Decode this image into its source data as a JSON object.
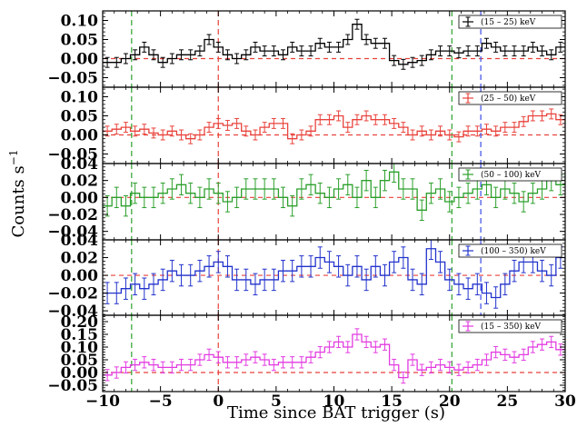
{
  "chart_data": {
    "type": "step",
    "xlabel": "Time since BAT trigger (s)",
    "ylabel": "Counts  s",
    "ylabel_superscript": "−1",
    "xlim": [
      -10,
      30
    ],
    "xticks": [
      -10,
      -5,
      0,
      5,
      10,
      15,
      20,
      25,
      30
    ],
    "xtick_labels": [
      "−10",
      "−5",
      "0",
      "5",
      "10",
      "15",
      "20",
      "25",
      "30"
    ],
    "bin_width": 0.8,
    "vlines": [
      {
        "x": -7.5,
        "color": "#2ca02c",
        "dash": "dashed"
      },
      {
        "x": 0,
        "color": "#e8423b",
        "dash": "dashed"
      },
      {
        "x": 20.2,
        "color": "#2ca02c",
        "dash": "dashed"
      }
    ],
    "panels": [
      {
        "name": "(15 – 25) keV",
        "color": "#000000",
        "ylim": [
          -0.075,
          0.125
        ],
        "yticks": [
          -0.05,
          0.0,
          0.05,
          0.1
        ],
        "ytick_labels": [
          "−0.05",
          "0.00",
          "0.05",
          "0.10"
        ],
        "extra_vline": {
          "x": 22.7,
          "color": "#3a4de6"
        },
        "err": 0.013,
        "values": [
          -0.01,
          -0.01,
          0.0,
          0.01,
          0.03,
          0.01,
          -0.01,
          0.0,
          0.01,
          0.01,
          0.02,
          0.05,
          0.03,
          0.01,
          0.0,
          0.01,
          0.03,
          0.02,
          0.02,
          0.01,
          0.03,
          0.02,
          0.02,
          0.04,
          0.03,
          0.03,
          0.05,
          0.09,
          0.05,
          0.04,
          0.04,
          -0.005,
          -0.015,
          -0.01,
          -0.005,
          0.01,
          0.02,
          0.02,
          0.015,
          0.02,
          0.02,
          0.04,
          0.03,
          0.02,
          0.02,
          0.02,
          0.03,
          0.02,
          0.01,
          0.03,
          0.03,
          0.01,
          0.0,
          -0.005,
          0.03,
          0.025,
          0.015,
          0.01,
          0.0,
          -0.02,
          0.01,
          -0.01,
          0.0
        ]
      },
      {
        "name": "(25 – 50) keV",
        "color": "#e8423b",
        "ylim": [
          -0.075,
          0.125
        ],
        "yticks": [
          -0.05,
          0.0,
          0.05,
          0.1
        ],
        "ytick_labels": [
          "−0.05",
          "0.00",
          "0.05",
          "0.10"
        ],
        "extra_vline": {
          "x": 22.7,
          "color": "#3a4de6"
        },
        "err": 0.013,
        "values": [
          0.01,
          0.015,
          0.02,
          0.01,
          0.015,
          0.005,
          0.0,
          0.01,
          0.0,
          -0.01,
          0.0,
          0.02,
          0.03,
          0.025,
          0.03,
          0.01,
          0.0,
          0.02,
          0.03,
          0.03,
          -0.01,
          0.0,
          0.01,
          0.04,
          0.04,
          0.05,
          0.02,
          0.04,
          0.05,
          0.04,
          0.04,
          0.03,
          0.02,
          0.0,
          0.01,
          0.0,
          0.01,
          0.0,
          -0.005,
          0.01,
          0.01,
          0.015,
          0.01,
          0.02,
          0.02,
          0.035,
          0.05,
          0.05,
          0.055,
          0.04,
          0.02,
          -0.005,
          0.005,
          0.01,
          0.02,
          0.01,
          0.0,
          0.005,
          0.01,
          0.01,
          0.0,
          -0.005,
          0.005
        ]
      },
      {
        "name": "(50 – 100) keV",
        "color": "#2ca02c",
        "ylim": [
          -0.05,
          0.04
        ],
        "yticks": [
          -0.04,
          -0.02,
          0.0,
          0.02,
          0.04
        ],
        "ytick_labels": [
          "−0.04",
          "−0.02",
          "0.00",
          "0.02",
          "0.04"
        ],
        "extra_vline": {
          "x": 22.7,
          "color": "#3a4de6"
        },
        "err": 0.012,
        "values": [
          -0.01,
          0.0,
          -0.01,
          0.005,
          0.0,
          0.0,
          0.005,
          0.01,
          0.015,
          0.005,
          0.0,
          0.01,
          0.005,
          -0.005,
          0.0,
          0.01,
          0.01,
          0.01,
          0.01,
          0.0,
          -0.01,
          0.01,
          0.015,
          0.005,
          0.0,
          0.01,
          0.015,
          0.0,
          0.02,
          0.0,
          0.02,
          0.03,
          0.01,
          0.01,
          -0.015,
          0.005,
          0.01,
          -0.005,
          0.0,
          0.005,
          0.01,
          0.015,
          0.0,
          0.01,
          0.005,
          -0.005,
          0.005,
          0.01,
          0.02,
          0.015,
          0.03,
          0.035,
          0.025,
          0.02,
          0.0,
          -0.01,
          0.005,
          0.005,
          0.0,
          0.0,
          0.005,
          0.0,
          -0.01
        ]
      },
      {
        "name": "(100 – 350) keV",
        "color": "#2233cc",
        "ylim": [
          -0.045,
          0.04
        ],
        "yticks": [
          -0.04,
          -0.02,
          0.0,
          0.02,
          0.04
        ],
        "ytick_labels": [
          "−0.04",
          "−0.02",
          "0.00",
          "0.02",
          "0.04"
        ],
        "extra_vline": {
          "x": 22.7,
          "color": "#3a4de6"
        },
        "err": 0.012,
        "values": [
          -0.02,
          -0.02,
          -0.015,
          -0.01,
          -0.015,
          -0.01,
          -0.005,
          0.005,
          0.0,
          0.0,
          0.005,
          0.01,
          0.015,
          0.01,
          -0.005,
          -0.005,
          -0.01,
          -0.005,
          -0.005,
          0.005,
          0.005,
          0.01,
          0.01,
          0.02,
          0.015,
          0.01,
          0.0,
          0.01,
          -0.005,
          0.01,
          0.0,
          0.015,
          0.02,
          -0.005,
          -0.01,
          0.03,
          0.015,
          -0.005,
          -0.01,
          -0.015,
          -0.01,
          -0.02,
          -0.025,
          -0.01,
          0.005,
          0.015,
          0.015,
          0.005,
          0.0,
          0.02,
          0.015,
          0.01,
          0.01,
          0.01,
          0.005,
          0.015,
          0.01,
          0.015,
          0.015,
          0.01,
          -0.005,
          -0.015,
          -0.005
        ]
      },
      {
        "name": "(15 – 350) keV",
        "color": "#e23be0",
        "ylim": [
          -0.075,
          0.225
        ],
        "yticks": [
          -0.05,
          0.0,
          0.05,
          0.1,
          0.15,
          0.2
        ],
        "ytick_labels": [
          "−0.05",
          "0.00",
          "0.05",
          "0.10",
          "0.15",
          "0.20"
        ],
        "err": 0.022,
        "values": [
          -0.01,
          0.0,
          0.02,
          0.03,
          0.04,
          0.03,
          0.02,
          0.02,
          0.03,
          0.03,
          0.05,
          0.07,
          0.06,
          0.04,
          0.04,
          0.05,
          0.06,
          0.05,
          0.03,
          0.04,
          0.04,
          0.04,
          0.06,
          0.08,
          0.1,
          0.12,
          0.1,
          0.15,
          0.12,
          0.1,
          0.11,
          0.03,
          -0.02,
          0.05,
          0.01,
          0.02,
          0.03,
          0.02,
          0.01,
          0.02,
          0.03,
          0.05,
          0.08,
          0.07,
          0.06,
          0.07,
          0.1,
          0.11,
          0.12,
          0.09,
          0.1,
          0.06,
          0.03,
          0.02,
          0.03,
          0.04,
          0.05,
          0.03,
          0.02,
          0.0,
          0.01,
          -0.02,
          -0.01
        ]
      }
    ]
  }
}
